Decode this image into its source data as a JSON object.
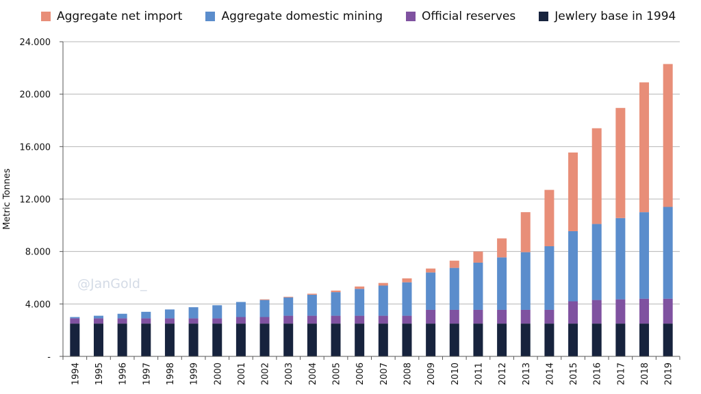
{
  "chart_data": {
    "type": "bar",
    "stacked": true,
    "categories": [
      "1994",
      "1995",
      "1996",
      "1997",
      "1998",
      "1999",
      "2000",
      "2001",
      "2002",
      "2003",
      "2004",
      "2005",
      "2006",
      "2007",
      "2008",
      "2009",
      "2010",
      "2011",
      "2012",
      "2013",
      "2014",
      "2015",
      "2016",
      "2017",
      "2018",
      "2019"
    ],
    "series": [
      {
        "name": "Jewlery base in 1994",
        "color": "#17233d",
        "values": [
          2500,
          2500,
          2500,
          2500,
          2500,
          2500,
          2500,
          2500,
          2500,
          2500,
          2500,
          2500,
          2500,
          2500,
          2500,
          2500,
          2500,
          2500,
          2500,
          2500,
          2500,
          2500,
          2500,
          2500,
          2500,
          2500
        ]
      },
      {
        "name": "Official reserves",
        "color": "#7f52a0",
        "values": [
          400,
          400,
          400,
          400,
          400,
          400,
          400,
          500,
          500,
          600,
          600,
          600,
          600,
          600,
          600,
          1050,
          1050,
          1050,
          1050,
          1050,
          1050,
          1700,
          1800,
          1850,
          1900,
          1900
        ]
      },
      {
        "name": "Aggregate domestic mining",
        "color": "#5b8dcc",
        "values": [
          100,
          200,
          350,
          500,
          680,
          850,
          1000,
          1150,
          1300,
          1400,
          1600,
          1800,
          2050,
          2300,
          2550,
          2850,
          3200,
          3600,
          4000,
          4400,
          4850,
          5350,
          5800,
          6200,
          6600,
          7000
        ]
      },
      {
        "name": "Aggregate net import",
        "color": "#e88e78",
        "values": [
          0,
          0,
          0,
          0,
          0,
          0,
          0,
          0,
          50,
          50,
          80,
          120,
          180,
          200,
          300,
          300,
          550,
          850,
          1450,
          3050,
          4300,
          6000,
          7300,
          8400,
          9900,
          10900
        ]
      }
    ],
    "legend_order": [
      "Aggregate net import",
      "Aggregate domestic mining",
      "Official reserves",
      "Jewlery base in 1994"
    ],
    "ylabel": "Metric Tonnes",
    "xlabel": "",
    "ylim": [
      0,
      24000
    ],
    "yticks": [
      {
        "value": 0,
        "label": "-"
      },
      {
        "value": 4000,
        "label": "4.000"
      },
      {
        "value": 8000,
        "label": "8.000"
      },
      {
        "value": 12000,
        "label": "12.000"
      },
      {
        "value": 16000,
        "label": "16.000"
      },
      {
        "value": 20000,
        "label": "20.000"
      },
      {
        "value": 24000,
        "label": "24.000"
      }
    ],
    "grid": true,
    "legend_position": "top",
    "watermark": "@JanGold_"
  }
}
